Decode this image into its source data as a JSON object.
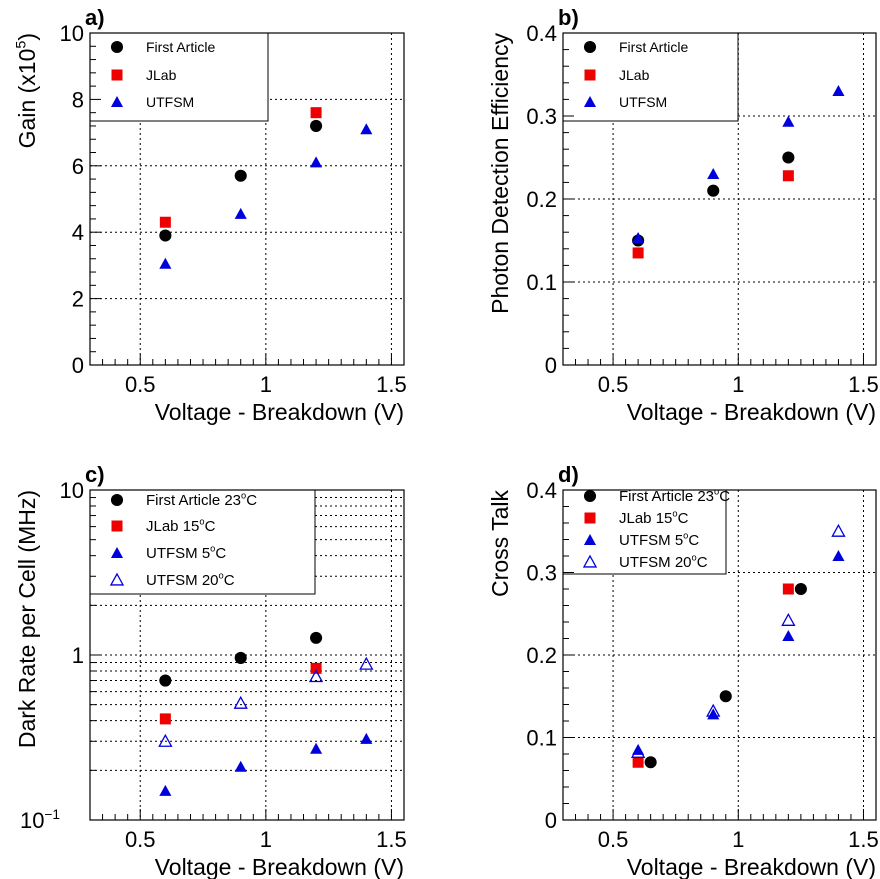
{
  "chart_data": [
    {
      "panel_label": "a)",
      "type": "scatter",
      "ylabel": "Gain (x10",
      "ylabel_sup": "5",
      "ylabel_close": ")",
      "xlabel": "Voltage - Breakdown (V)",
      "xlim": [
        0.3,
        1.55
      ],
      "ylim": [
        0,
        10
      ],
      "yscale": "linear",
      "grid": true,
      "legend_placement": "top-left",
      "xticks": [
        {
          "v": 0.5,
          "label": "0.5"
        },
        {
          "v": 1,
          "label": "1"
        },
        {
          "v": 1.5,
          "label": "1.5"
        }
      ],
      "yticks": [
        {
          "v": 0,
          "label": "0"
        },
        {
          "v": 2,
          "label": "2"
        },
        {
          "v": 4,
          "label": "4"
        },
        {
          "v": 6,
          "label": "6"
        },
        {
          "v": 8,
          "label": "8"
        },
        {
          "v": 10,
          "label": "10"
        }
      ],
      "series": [
        {
          "name": "First Article",
          "marker": "circle",
          "color": "#000000",
          "x": [
            0.6,
            0.9,
            1.2
          ],
          "y": [
            3.9,
            5.7,
            7.2
          ]
        },
        {
          "name": "JLab",
          "marker": "square",
          "color": "#ee0000",
          "x": [
            0.6,
            1.2
          ],
          "y": [
            4.3,
            7.6
          ]
        },
        {
          "name": "UTFSM",
          "marker": "triangle",
          "color": "#0000dd",
          "x": [
            0.6,
            0.9,
            1.2,
            1.4
          ],
          "y": [
            3.05,
            4.55,
            6.1,
            7.1
          ]
        }
      ]
    },
    {
      "panel_label": "b)",
      "type": "scatter",
      "ylabel": "Photon Detection Efficiency",
      "xlabel": "Voltage - Breakdown (V)",
      "xlim": [
        0.3,
        1.55
      ],
      "ylim": [
        0,
        0.4
      ],
      "yscale": "linear",
      "grid": true,
      "legend_placement": "top-left",
      "xticks": [
        {
          "v": 0.5,
          "label": "0.5"
        },
        {
          "v": 1,
          "label": "1"
        },
        {
          "v": 1.5,
          "label": "1.5"
        }
      ],
      "yticks": [
        {
          "v": 0,
          "label": "0"
        },
        {
          "v": 0.1,
          "label": "0.1"
        },
        {
          "v": 0.2,
          "label": "0.2"
        },
        {
          "v": 0.3,
          "label": "0.3"
        },
        {
          "v": 0.4,
          "label": "0.4"
        }
      ],
      "series": [
        {
          "name": "First Article",
          "marker": "circle",
          "color": "#000000",
          "x": [
            0.6,
            0.9,
            1.2
          ],
          "y": [
            0.15,
            0.21,
            0.25
          ]
        },
        {
          "name": "JLab",
          "marker": "square",
          "color": "#ee0000",
          "x": [
            0.6,
            1.2
          ],
          "y": [
            0.135,
            0.228
          ]
        },
        {
          "name": "UTFSM",
          "marker": "triangle",
          "color": "#0000dd",
          "x": [
            0.6,
            0.9,
            1.2,
            1.4
          ],
          "y": [
            0.153,
            0.23,
            0.293,
            0.33
          ]
        }
      ]
    },
    {
      "panel_label": "c)",
      "type": "scatter",
      "ylabel": "Dark Rate per Cell (MHz)",
      "xlabel": "Voltage - Breakdown (V)",
      "xlim": [
        0.3,
        1.55
      ],
      "ylim": [
        0.1,
        10
      ],
      "yscale": "log",
      "grid": true,
      "legend_placement": "top-left",
      "xticks": [
        {
          "v": 0.5,
          "label": "0.5"
        },
        {
          "v": 1,
          "label": "1"
        },
        {
          "v": 1.5,
          "label": "1.5"
        }
      ],
      "yticks": [
        {
          "v": 0.1,
          "label": "10",
          "sup": "−1"
        },
        {
          "v": 1,
          "label": "1"
        },
        {
          "v": 10,
          "label": "10"
        }
      ],
      "series": [
        {
          "name": "First Article 23",
          "name_sup": "o",
          "name_suffix": "C",
          "marker": "circle",
          "color": "#000000",
          "x": [
            0.6,
            0.9,
            1.2
          ],
          "y": [
            0.7,
            0.96,
            1.27
          ]
        },
        {
          "name": "JLab 15",
          "name_sup": "o",
          "name_suffix": "C",
          "marker": "square",
          "color": "#ee0000",
          "x": [
            0.6,
            1.2
          ],
          "y": [
            0.41,
            0.83
          ]
        },
        {
          "name": "UTFSM 5",
          "name_sup": "o",
          "name_suffix": "C",
          "marker": "triangle",
          "color": "#0000dd",
          "x": [
            0.6,
            0.9,
            1.2,
            1.4
          ],
          "y": [
            0.15,
            0.21,
            0.27,
            0.31
          ]
        },
        {
          "name": "UTFSM 20",
          "name_sup": "o",
          "name_suffix": "C",
          "marker": "triangle-open",
          "color": "#0000dd",
          "x": [
            0.6,
            0.9,
            1.2,
            1.4
          ],
          "y": [
            0.3,
            0.51,
            0.74,
            0.88
          ]
        }
      ]
    },
    {
      "panel_label": "d)",
      "type": "scatter",
      "ylabel": "Cross Talk",
      "xlabel": "Voltage - Breakdown (V)",
      "xlim": [
        0.3,
        1.55
      ],
      "ylim": [
        0,
        0.4
      ],
      "yscale": "linear",
      "grid": true,
      "legend_placement": "top-left",
      "xticks": [
        {
          "v": 0.5,
          "label": "0.5"
        },
        {
          "v": 1,
          "label": "1"
        },
        {
          "v": 1.5,
          "label": "1.5"
        }
      ],
      "yticks": [
        {
          "v": 0,
          "label": "0"
        },
        {
          "v": 0.1,
          "label": "0.1"
        },
        {
          "v": 0.2,
          "label": "0.2"
        },
        {
          "v": 0.3,
          "label": "0.3"
        },
        {
          "v": 0.4,
          "label": "0.4"
        }
      ],
      "series": [
        {
          "name": "First Article 23",
          "name_sup": "o",
          "name_suffix": "C",
          "marker": "circle",
          "color": "#000000",
          "x": [
            0.65,
            0.95,
            1.25
          ],
          "y": [
            0.07,
            0.15,
            0.28
          ]
        },
        {
          "name": "JLab 15",
          "name_sup": "o",
          "name_suffix": "C",
          "marker": "square",
          "color": "#ee0000",
          "x": [
            0.6,
            1.2
          ],
          "y": [
            0.07,
            0.28
          ]
        },
        {
          "name": "UTFSM 5",
          "name_sup": "o",
          "name_suffix": "C",
          "marker": "triangle",
          "color": "#0000dd",
          "x": [
            0.6,
            0.9,
            1.2,
            1.4
          ],
          "y": [
            0.085,
            0.128,
            0.223,
            0.32
          ]
        },
        {
          "name": "UTFSM 20",
          "name_sup": "o",
          "name_suffix": "C",
          "marker": "triangle-open",
          "color": "#0000dd",
          "x": [
            0.6,
            0.9,
            1.2,
            1.4
          ],
          "y": [
            0.082,
            0.132,
            0.242,
            0.35
          ]
        }
      ]
    }
  ]
}
